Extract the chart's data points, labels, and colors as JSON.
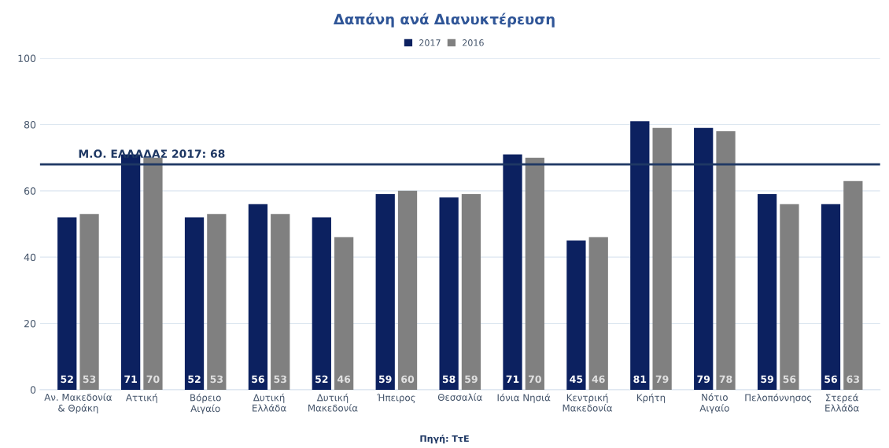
{
  "chart_data": {
    "type": "bar",
    "title": "Δαπάνη ανά Διανυκτέρευση",
    "categories": [
      "Αν. Μακεδονία\n& Θράκη",
      "Αττική",
      "Βόρειο Αιγαίο",
      "Δυτική Ελλάδα",
      "Δυτική\nΜακεδονία",
      "Ήπειρος",
      "Θεσσαλία",
      "Ιόνια Νησιά",
      "Κεντρική\nΜακεδονία",
      "Κρήτη",
      "Νότιο Αιγαίο",
      "Πελοπόννησος",
      "Στερεά Ελλάδα"
    ],
    "series": [
      {
        "name": "2017",
        "color": "#0c2160",
        "values": [
          52,
          71,
          52,
          56,
          52,
          59,
          58,
          71,
          45,
          81,
          79,
          59,
          56
        ]
      },
      {
        "name": "2016",
        "color": "#808080",
        "values": [
          53,
          70,
          53,
          53,
          46,
          60,
          59,
          70,
          46,
          79,
          78,
          56,
          63
        ]
      }
    ],
    "ylim": [
      0,
      100
    ],
    "yticks": [
      0,
      20,
      40,
      60,
      80,
      100
    ],
    "grid": "y",
    "legend": "top",
    "data_labels": true,
    "ref_lines": [
      {
        "axis": "y",
        "value": 68,
        "label": "Μ.Ο. ΕΛΛΑΔΑΣ 2017: 68",
        "color": "#1f3864"
      }
    ],
    "annotations": [
      "Πηγή: ΤτΕ"
    ]
  }
}
